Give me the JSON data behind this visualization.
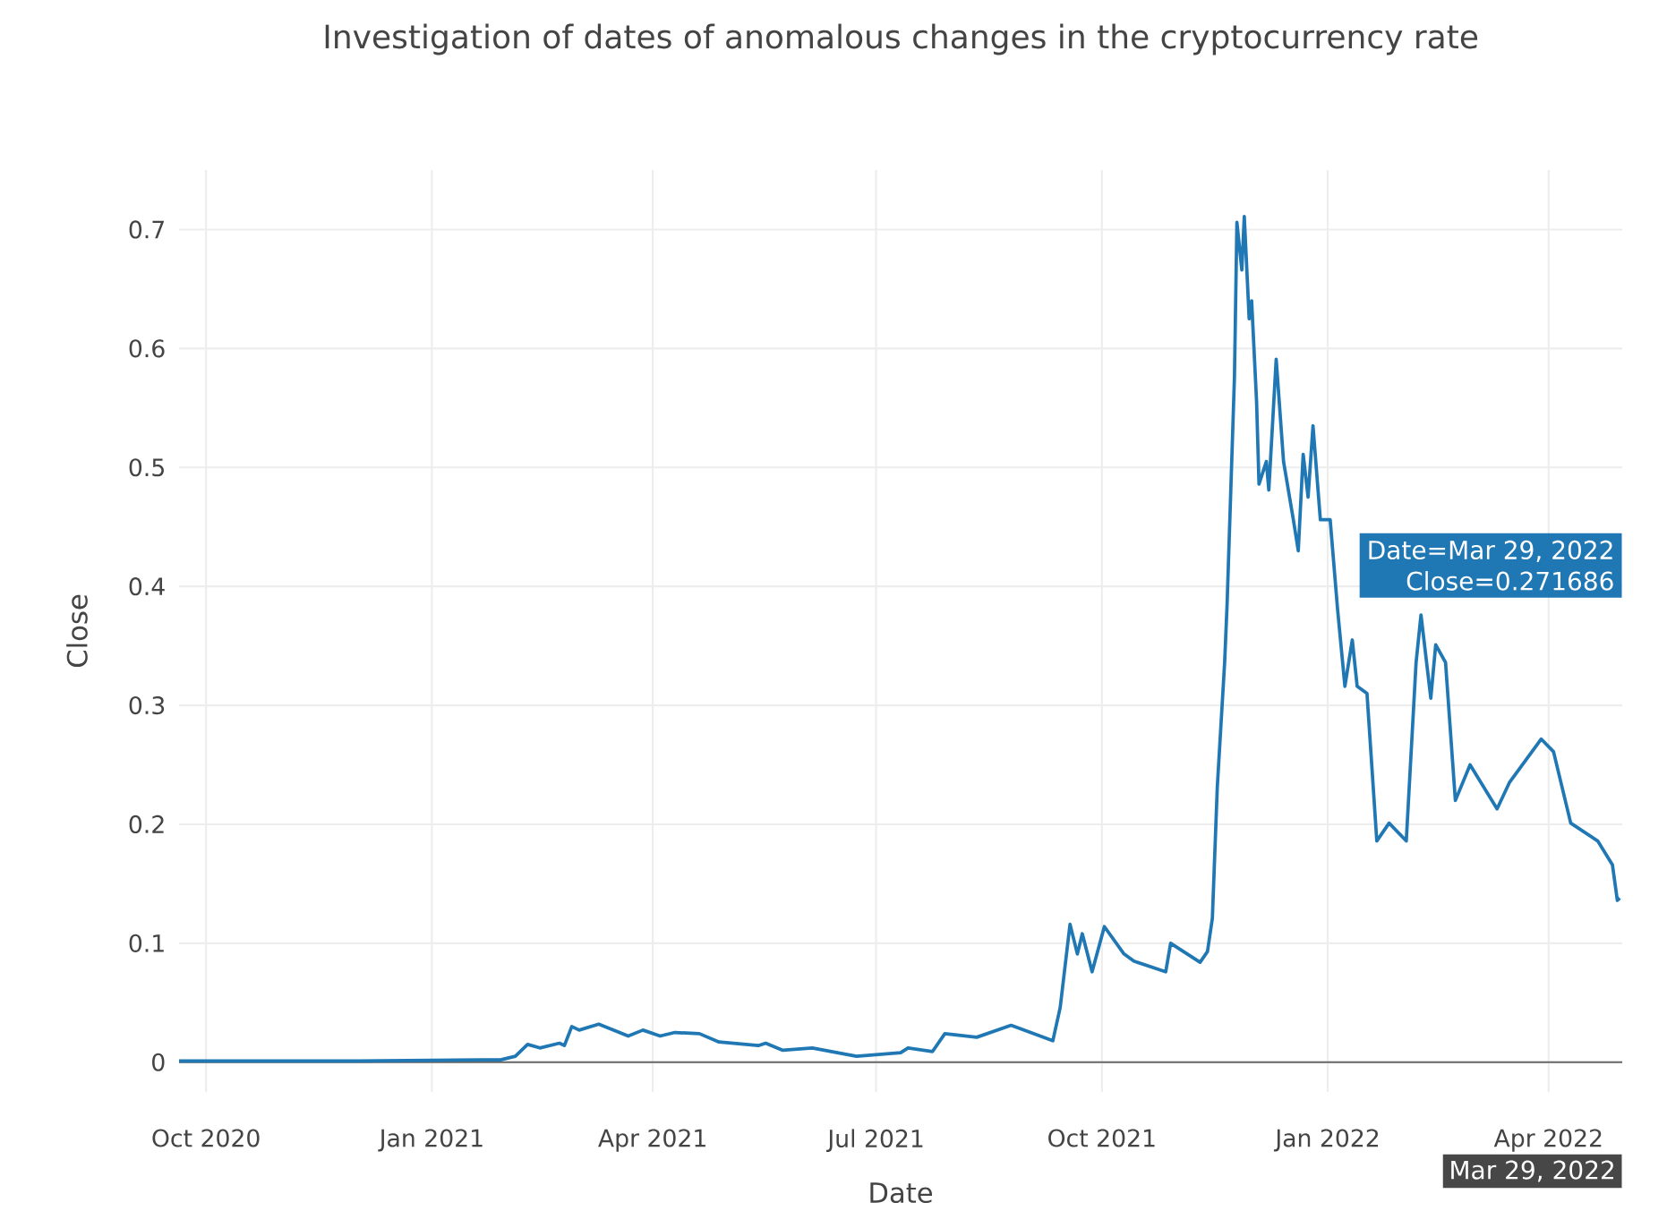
{
  "chart_data": {
    "type": "line",
    "title": "Investigation of dates of anomalous changes in the cryptocurrency rate",
    "xlabel": "Date",
    "ylabel": "Close",
    "x": [
      "2020-09-20",
      "2020-12-02",
      "2021-01-22",
      "2021-01-29",
      "2021-02-04",
      "2021-02-09",
      "2021-02-14",
      "2021-02-22",
      "2021-02-24",
      "2021-02-27",
      "2021-03-02",
      "2021-03-10",
      "2021-03-22",
      "2021-03-28",
      "2021-04-04",
      "2021-04-10",
      "2021-04-20",
      "2021-04-28",
      "2021-05-14",
      "2021-05-17",
      "2021-05-24",
      "2021-06-05",
      "2021-06-23",
      "2021-07-11",
      "2021-07-14",
      "2021-07-24",
      "2021-07-29",
      "2021-08-11",
      "2021-08-25",
      "2021-09-11",
      "2021-09-14",
      "2021-09-18",
      "2021-09-21",
      "2021-09-23",
      "2021-09-27",
      "2021-10-02",
      "2021-10-10",
      "2021-10-14",
      "2021-10-27",
      "2021-10-29",
      "2021-11-10",
      "2021-11-13",
      "2021-11-15",
      "2021-11-17",
      "2021-11-20",
      "2021-11-21",
      "2021-11-24",
      "2021-11-25",
      "2021-11-27",
      "2021-11-28",
      "2021-11-30",
      "2021-12-01",
      "2021-12-03",
      "2021-12-04",
      "2021-12-07",
      "2021-12-08",
      "2021-12-11",
      "2021-12-14",
      "2021-12-18",
      "2021-12-20",
      "2021-12-22",
      "2021-12-24",
      "2021-12-26",
      "2021-12-29",
      "2022-01-02",
      "2022-01-05",
      "2022-01-08",
      "2022-01-11",
      "2022-01-13",
      "2022-01-17",
      "2022-01-21",
      "2022-01-26",
      "2022-02-02",
      "2022-02-06",
      "2022-02-08",
      "2022-02-12",
      "2022-02-14",
      "2022-02-18",
      "2022-02-22",
      "2022-02-28",
      "2022-03-11",
      "2022-03-16",
      "2022-03-29",
      "2022-04-03",
      "2022-04-10",
      "2022-04-21",
      "2022-04-27",
      "2022-04-29",
      "2022-04-30"
    ],
    "series": [
      {
        "color": "#1f77b4",
        "values": [
          0.001,
          0.001,
          0.002,
          0.002,
          0.005,
          0.015,
          0.012,
          0.016,
          0.014,
          0.03,
          0.027,
          0.032,
          0.022,
          0.027,
          0.022,
          0.025,
          0.024,
          0.017,
          0.014,
          0.016,
          0.01,
          0.012,
          0.005,
          0.008,
          0.012,
          0.009,
          0.024,
          0.021,
          0.031,
          0.018,
          0.046,
          0.116,
          0.091,
          0.108,
          0.076,
          0.114,
          0.091,
          0.085,
          0.076,
          0.1,
          0.084,
          0.093,
          0.121,
          0.231,
          0.336,
          0.385,
          0.576,
          0.706,
          0.666,
          0.711,
          0.625,
          0.64,
          0.556,
          0.486,
          0.505,
          0.481,
          0.591,
          0.505,
          0.456,
          0.43,
          0.511,
          0.475,
          0.535,
          0.456,
          0.456,
          0.381,
          0.316,
          0.355,
          0.316,
          0.31,
          0.186,
          0.201,
          0.186,
          0.336,
          0.376,
          0.306,
          0.351,
          0.336,
          0.22,
          0.25,
          0.213,
          0.235,
          0.271686,
          0.261,
          0.201,
          0.186,
          0.166,
          0.136,
          0.138
        ]
      }
    ],
    "xlim": [
      "2020-09-20",
      "2022-05-01"
    ],
    "xticks": [
      {
        "value": "2020-10-01",
        "label": "Oct 2020"
      },
      {
        "value": "2021-01-01",
        "label": "Jan 2021"
      },
      {
        "value": "2021-04-01",
        "label": "Apr 2021"
      },
      {
        "value": "2021-07-01",
        "label": "Jul 2021"
      },
      {
        "value": "2021-10-01",
        "label": "Oct 2021"
      },
      {
        "value": "2022-01-01",
        "label": "Jan 2022"
      },
      {
        "value": "2022-04-01",
        "label": "Apr 2022"
      }
    ],
    "ylim": [
      -0.025,
      0.75
    ],
    "yticks": [
      0,
      0.1,
      0.2,
      0.3,
      0.4,
      0.5,
      0.6,
      0.7
    ],
    "grid": true,
    "marker": "none",
    "line_style": "solid",
    "annotations": [
      "Date=Mar 29, 2022",
      "Close=0.271686",
      "Mar 29, 2022"
    ]
  }
}
